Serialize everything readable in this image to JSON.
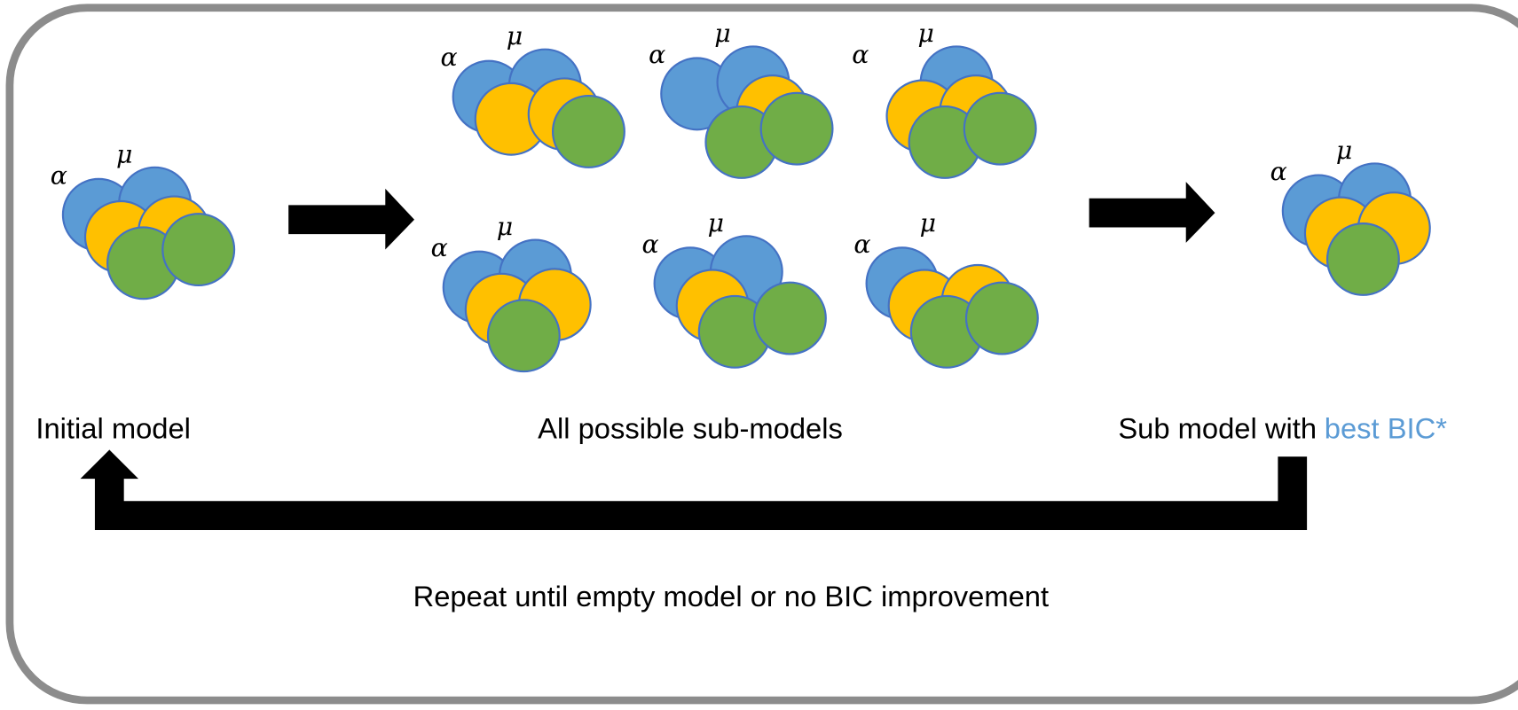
{
  "initial": {
    "alpha": "α",
    "mu": "μ",
    "caption": "Initial model"
  },
  "submodels": {
    "items": [
      {
        "alpha": "α",
        "mu": "μ"
      },
      {
        "alpha": "α",
        "mu": "μ"
      },
      {
        "alpha": "α",
        "mu": "μ"
      },
      {
        "alpha": "α",
        "mu": "μ"
      },
      {
        "alpha": "α",
        "mu": "μ"
      },
      {
        "alpha": "α",
        "mu": "μ"
      }
    ],
    "caption": "All possible sub-models"
  },
  "best": {
    "alpha": "α",
    "mu": "μ",
    "caption": "Sub model with",
    "highlight": "best BIC*"
  },
  "loop_note": "Repeat until empty model or no BIC improvement"
}
